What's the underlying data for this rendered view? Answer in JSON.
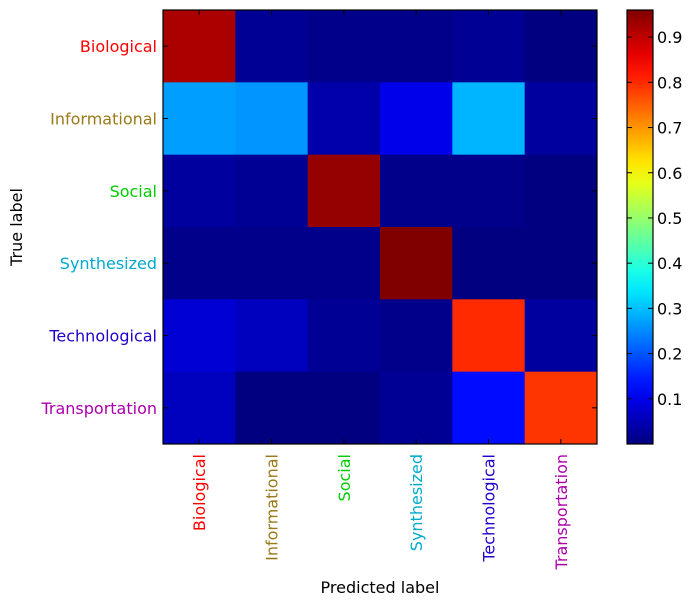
{
  "chart_data": {
    "type": "heatmap",
    "title": "",
    "xlabel": "Predicted label",
    "ylabel": "True label",
    "categories": [
      "Biological",
      "Informational",
      "Social",
      "Synthesized",
      "Technological",
      "Transportation"
    ],
    "label_colors": [
      "#ff0000",
      "#9a7a17",
      "#00cc00",
      "#00aacc",
      "#2200cc",
      "#aa00aa"
    ],
    "matrix": [
      [
        0.92,
        0.02,
        0.01,
        0.01,
        0.02,
        0.0
      ],
      [
        0.27,
        0.26,
        0.04,
        0.1,
        0.29,
        0.03
      ],
      [
        0.03,
        0.02,
        0.94,
        0.01,
        0.01,
        0.0
      ],
      [
        0.01,
        0.01,
        0.01,
        0.97,
        0.0,
        0.0
      ],
      [
        0.08,
        0.06,
        0.02,
        0.01,
        0.8,
        0.03
      ],
      [
        0.06,
        0.0,
        0.0,
        0.02,
        0.13,
        0.79
      ]
    ],
    "colorbar": {
      "min": 0.0,
      "max": 0.96,
      "ticks": [
        "0.1",
        "0.2",
        "0.3",
        "0.4",
        "0.5",
        "0.6",
        "0.7",
        "0.8",
        "0.9"
      ],
      "colormap": "jet"
    }
  }
}
